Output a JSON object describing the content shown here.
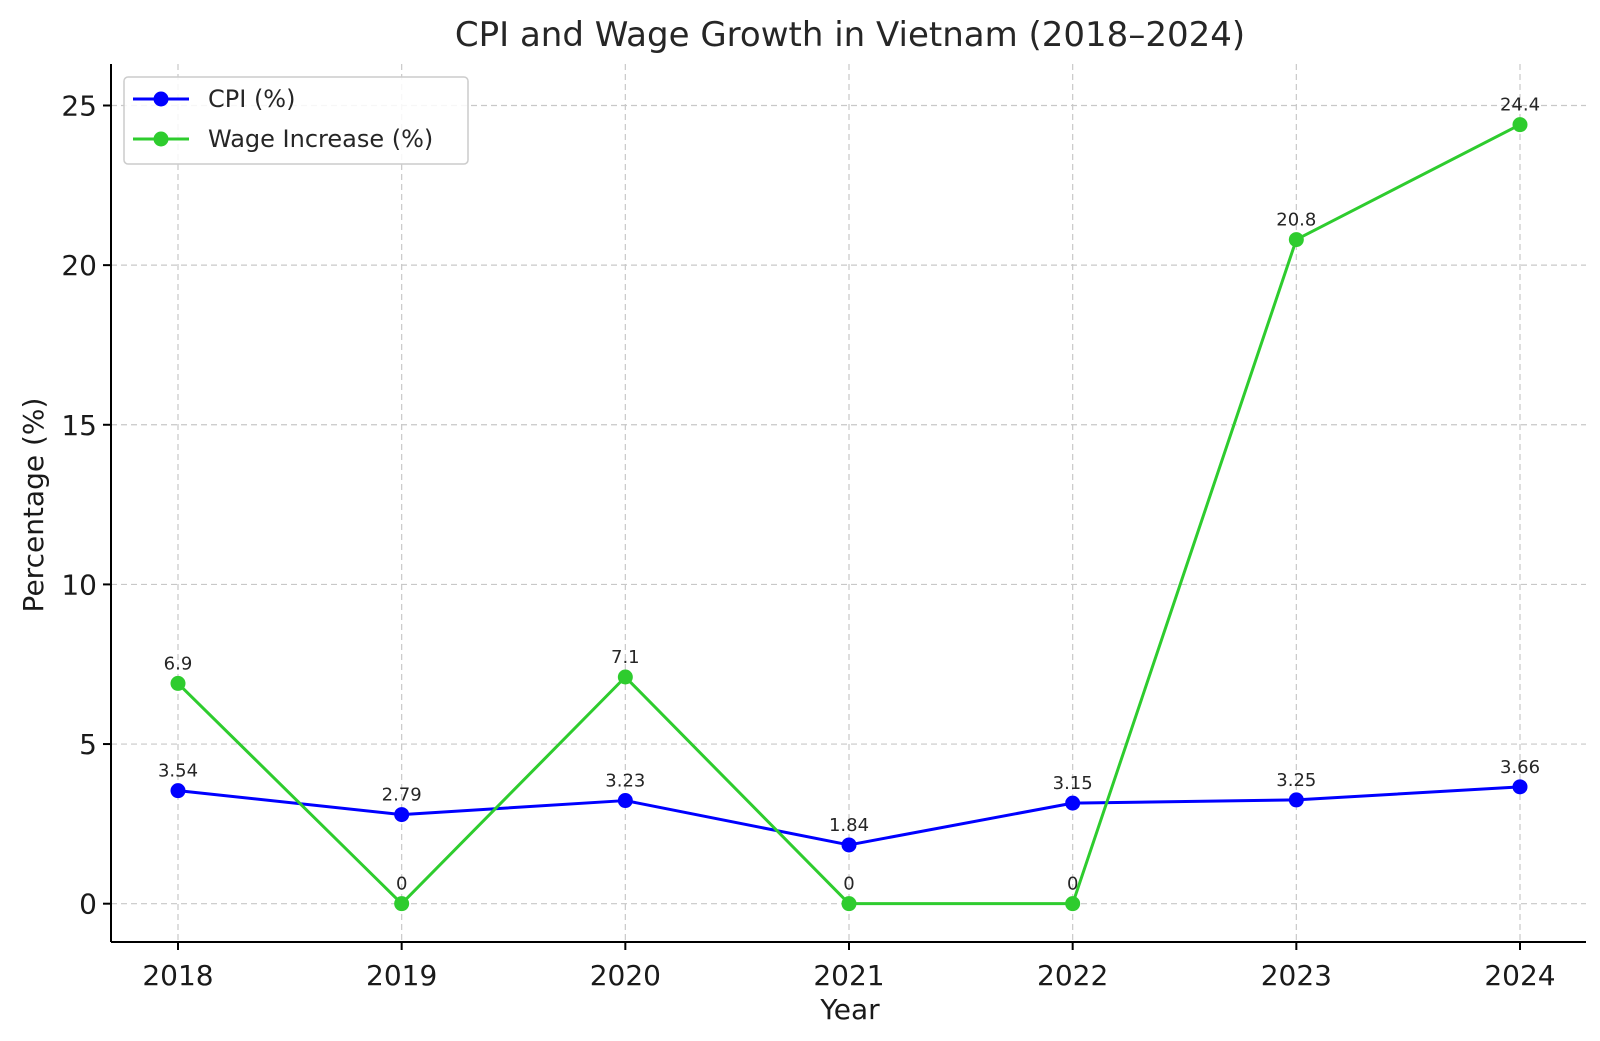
{
  "chart_data": {
    "type": "line",
    "title": "CPI and Wage Growth in Vietnam (2018–2024)",
    "xlabel": "Year",
    "ylabel": "Percentage (%)",
    "categories": [
      "2018",
      "2019",
      "2020",
      "2021",
      "2022",
      "2023",
      "2024"
    ],
    "ylim": [
      -1.2,
      26.3
    ],
    "yticks": [
      0,
      5,
      10,
      15,
      20,
      25
    ],
    "grid": true,
    "legend_position": "top-left",
    "series": [
      {
        "name": "CPI (%)",
        "color": "#0000ff",
        "values": [
          3.54,
          2.79,
          3.23,
          1.84,
          3.15,
          3.25,
          3.66
        ],
        "labels": [
          "3.54",
          "2.79",
          "3.23",
          "1.84",
          "3.15",
          "3.25",
          "3.66"
        ]
      },
      {
        "name": "Wage Increase (%)",
        "color": "#2ecc2e",
        "values": [
          6.9,
          0,
          7.1,
          0,
          0,
          20.8,
          24.4
        ],
        "labels": [
          "6.9",
          "0",
          "7.1",
          "0",
          "0",
          "20.8",
          "24.4"
        ]
      }
    ]
  }
}
